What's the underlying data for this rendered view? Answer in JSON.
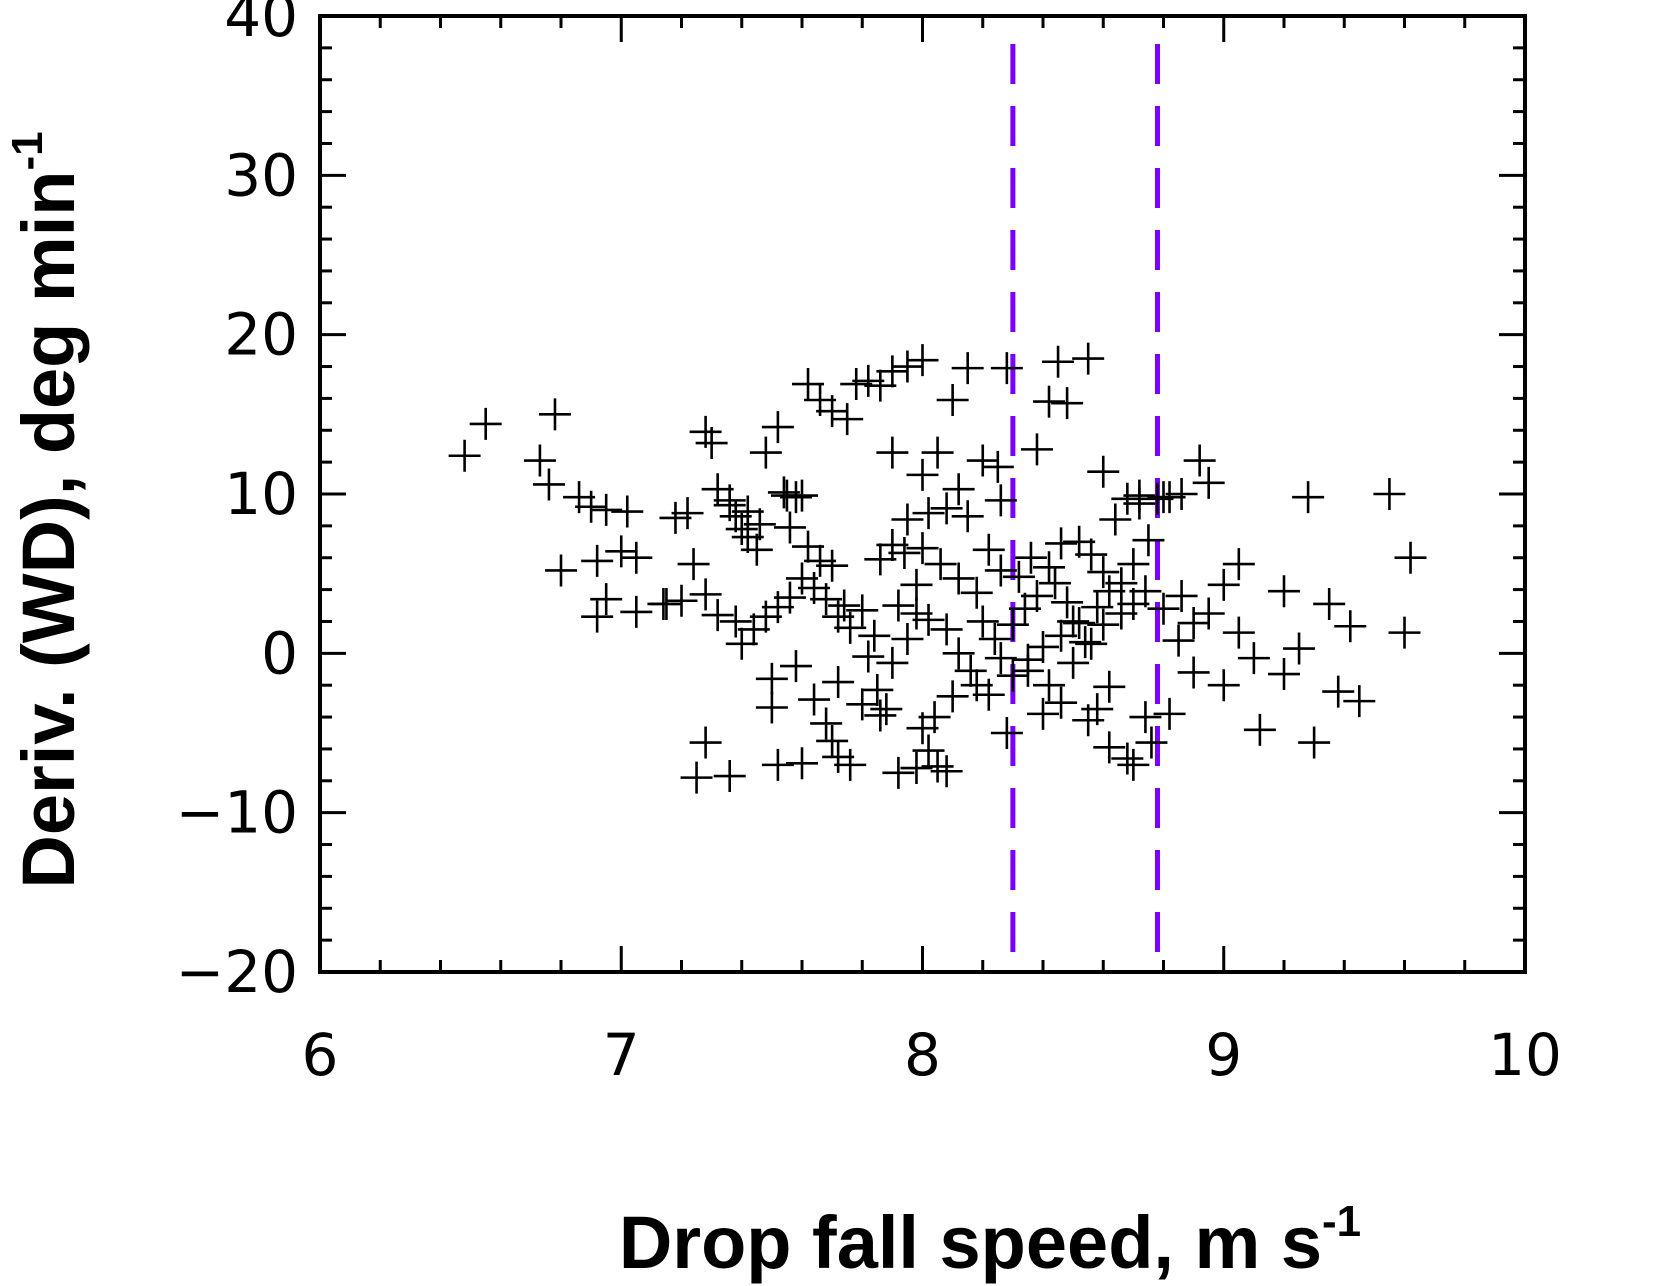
{
  "chart_data": {
    "type": "scatter",
    "xlabel": "Drop fall speed, m s",
    "xlabel_sup": "-1",
    "ylabel": "Deriv. (WD), deg min",
    "ylabel_sup": "-1",
    "xlim": [
      6,
      10
    ],
    "ylim": [
      -20,
      40
    ],
    "xticks": [
      "6",
      "7",
      "8",
      "9",
      "10"
    ],
    "yticks": [
      "−20",
      "−10",
      "0",
      "10",
      "20",
      "30",
      "40"
    ],
    "marker": "+",
    "marker_color": "#000000",
    "grid": false,
    "vlines": [
      {
        "x": 8.3,
        "color": "#7b00ff",
        "style": "dashed"
      },
      {
        "x": 8.78,
        "color": "#7b00ff",
        "style": "dashed"
      }
    ],
    "points": [
      [
        6.48,
        12.4
      ],
      [
        6.55,
        14.4
      ],
      [
        6.78,
        15.0
      ],
      [
        6.73,
        12.1
      ],
      [
        6.76,
        10.6
      ],
      [
        6.86,
        9.8
      ],
      [
        6.9,
        9.2
      ],
      [
        6.95,
        9.0
      ],
      [
        7.02,
        8.9
      ],
      [
        6.8,
        5.2
      ],
      [
        6.92,
        5.8
      ],
      [
        7.0,
        6.4
      ],
      [
        7.05,
        6.0
      ],
      [
        6.95,
        3.4
      ],
      [
        6.92,
        2.3
      ],
      [
        7.05,
        2.6
      ],
      [
        7.15,
        3.1
      ],
      [
        7.18,
        8.5
      ],
      [
        7.22,
        8.8
      ],
      [
        7.28,
        13.9
      ],
      [
        7.3,
        13.2
      ],
      [
        7.32,
        10.3
      ],
      [
        7.36,
        9.3
      ],
      [
        7.38,
        8.6
      ],
      [
        7.4,
        7.8
      ],
      [
        7.42,
        7.3
      ],
      [
        7.45,
        6.5
      ],
      [
        7.48,
        12.6
      ],
      [
        7.52,
        14.2
      ],
      [
        7.55,
        9.9
      ],
      [
        7.58,
        9.8
      ],
      [
        7.62,
        16.9
      ],
      [
        7.66,
        15.9
      ],
      [
        7.7,
        15.2
      ],
      [
        7.75,
        14.7
      ],
      [
        7.78,
        16.9
      ],
      [
        7.82,
        17.1
      ],
      [
        7.86,
        16.8
      ],
      [
        7.9,
        17.7
      ],
      [
        7.95,
        18.0
      ],
      [
        8.0,
        18.4
      ],
      [
        8.15,
        17.9
      ],
      [
        8.28,
        17.9
      ],
      [
        8.42,
        15.8
      ],
      [
        8.48,
        15.7
      ],
      [
        8.45,
        18.3
      ],
      [
        8.55,
        18.5
      ],
      [
        8.1,
        15.9
      ],
      [
        8.05,
        12.6
      ],
      [
        7.9,
        12.6
      ],
      [
        8.2,
        12.1
      ],
      [
        8.25,
        11.7
      ],
      [
        8.38,
        12.8
      ],
      [
        8.6,
        11.4
      ],
      [
        8.92,
        12.1
      ],
      [
        8.95,
        10.7
      ],
      [
        9.28,
        9.8
      ],
      [
        9.55,
        10.0
      ],
      [
        9.62,
        6.0
      ],
      [
        9.6,
        1.3
      ],
      [
        9.42,
        1.7
      ],
      [
        9.35,
        3.1
      ],
      [
        9.2,
        3.9
      ],
      [
        9.25,
        0.3
      ],
      [
        9.2,
        -1.3
      ],
      [
        9.45,
        -3.0
      ],
      [
        9.38,
        -2.4
      ],
      [
        9.12,
        -4.8
      ],
      [
        9.3,
        -5.6
      ],
      [
        9.0,
        -2.0
      ],
      [
        8.9,
        -1.2
      ],
      [
        8.85,
        0.8
      ],
      [
        8.95,
        2.5
      ],
      [
        9.0,
        4.3
      ],
      [
        9.05,
        5.6
      ],
      [
        8.82,
        9.8
      ],
      [
        8.78,
        9.7
      ],
      [
        8.72,
        9.4
      ],
      [
        8.75,
        7.1
      ],
      [
        8.7,
        5.6
      ],
      [
        8.66,
        4.4
      ],
      [
        8.62,
        3.9
      ],
      [
        8.58,
        2.9
      ],
      [
        8.5,
        2.0
      ],
      [
        8.46,
        1.1
      ],
      [
        8.4,
        0.4
      ],
      [
        8.35,
        -0.4
      ],
      [
        8.3,
        -1.4
      ],
      [
        8.28,
        -5.0
      ],
      [
        8.22,
        -2.6
      ],
      [
        8.18,
        -2.0
      ],
      [
        8.12,
        0.0
      ],
      [
        8.08,
        1.5
      ],
      [
        8.02,
        2.1
      ],
      [
        7.98,
        2.5
      ],
      [
        7.95,
        0.9
      ],
      [
        7.9,
        -0.6
      ],
      [
        7.85,
        -2.3
      ],
      [
        7.88,
        -3.5
      ],
      [
        7.92,
        -7.5
      ],
      [
        7.98,
        -7.2
      ],
      [
        8.02,
        -6.1
      ],
      [
        8.05,
        -7.1
      ],
      [
        8.08,
        -7.4
      ],
      [
        8.0,
        -4.7
      ],
      [
        7.82,
        -0.2
      ],
      [
        7.76,
        1.6
      ],
      [
        7.72,
        2.3
      ],
      [
        7.68,
        3.4
      ],
      [
        7.64,
        4.1
      ],
      [
        7.6,
        4.7
      ],
      [
        7.56,
        3.5
      ],
      [
        7.52,
        2.9
      ],
      [
        7.48,
        2.3
      ],
      [
        7.44,
        1.5
      ],
      [
        7.4,
        0.6
      ],
      [
        7.38,
        2.0
      ],
      [
        7.32,
        2.4
      ],
      [
        7.28,
        3.7
      ],
      [
        7.24,
        5.6
      ],
      [
        7.2,
        3.3
      ],
      [
        7.14,
        3.1
      ],
      [
        7.5,
        -1.6
      ],
      [
        7.5,
        -3.4
      ],
      [
        7.58,
        -0.8
      ],
      [
        7.64,
        -2.9
      ],
      [
        7.68,
        -4.4
      ],
      [
        7.7,
        -5.5
      ],
      [
        7.72,
        -6.5
      ],
      [
        7.76,
        -7.0
      ],
      [
        7.6,
        -6.9
      ],
      [
        7.52,
        -7.0
      ],
      [
        7.36,
        -7.7
      ],
      [
        7.25,
        -7.8
      ],
      [
        7.28,
        -5.6
      ],
      [
        7.72,
        -1.8
      ],
      [
        7.84,
        1.1
      ],
      [
        7.86,
        5.9
      ],
      [
        7.9,
        6.8
      ],
      [
        7.95,
        8.4
      ],
      [
        8.02,
        8.8
      ],
      [
        8.08,
        9.1
      ],
      [
        8.15,
        8.6
      ],
      [
        8.22,
        6.5
      ],
      [
        8.26,
        5.2
      ],
      [
        8.32,
        4.8
      ],
      [
        8.36,
        6.0
      ],
      [
        8.42,
        5.4
      ],
      [
        8.46,
        6.9
      ],
      [
        8.52,
        7.0
      ],
      [
        8.56,
        6.2
      ],
      [
        8.6,
        5.1
      ],
      [
        8.64,
        8.4
      ],
      [
        8.68,
        9.7
      ],
      [
        8.72,
        9.9
      ],
      [
        8.8,
        9.8
      ],
      [
        8.86,
        10.0
      ],
      [
        8.62,
        -2.1
      ],
      [
        8.58,
        -3.5
      ],
      [
        8.55,
        -4.2
      ],
      [
        8.62,
        -5.9
      ],
      [
        8.68,
        -6.6
      ],
      [
        8.7,
        -7.0
      ],
      [
        8.74,
        -4.0
      ],
      [
        8.76,
        -5.6
      ],
      [
        8.82,
        -3.8
      ],
      [
        8.46,
        -3.1
      ],
      [
        8.42,
        -2.0
      ],
      [
        8.4,
        -3.8
      ],
      [
        8.35,
        -1.1
      ],
      [
        8.5,
        -0.6
      ],
      [
        8.54,
        0.7
      ],
      [
        8.6,
        1.8
      ],
      [
        8.66,
        2.5
      ],
      [
        8.7,
        3.1
      ],
      [
        8.74,
        3.9
      ],
      [
        8.8,
        2.8
      ],
      [
        8.86,
        3.6
      ],
      [
        8.9,
        1.9
      ],
      [
        9.05,
        1.3
      ],
      [
        9.1,
        -0.3
      ],
      [
        8.18,
        3.8
      ],
      [
        8.12,
        4.7
      ],
      [
        8.06,
        5.6
      ],
      [
        8.0,
        6.6
      ],
      [
        7.94,
        6.3
      ],
      [
        7.98,
        4.3
      ],
      [
        7.92,
        3.0
      ],
      [
        7.8,
        2.7
      ],
      [
        7.74,
        3.0
      ],
      [
        7.7,
        5.5
      ],
      [
        7.66,
        5.8
      ],
      [
        7.62,
        6.7
      ],
      [
        7.56,
        7.9
      ],
      [
        7.46,
        8.1
      ],
      [
        7.42,
        8.9
      ],
      [
        7.36,
        9.6
      ],
      [
        7.6,
        9.9
      ],
      [
        7.54,
        10.1
      ],
      [
        8.26,
        9.6
      ],
      [
        8.12,
        10.3
      ],
      [
        8.0,
        11.2
      ],
      [
        8.2,
        2.0
      ],
      [
        8.24,
        0.9
      ],
      [
        8.3,
        1.8
      ],
      [
        8.34,
        2.8
      ],
      [
        8.38,
        3.6
      ],
      [
        8.44,
        4.4
      ],
      [
        8.48,
        3.2
      ],
      [
        8.52,
        1.9
      ],
      [
        8.56,
        0.6
      ],
      [
        8.26,
        -0.3
      ],
      [
        8.16,
        -1.1
      ],
      [
        8.1,
        -2.7
      ],
      [
        8.04,
        -4.0
      ],
      [
        7.86,
        -3.9
      ],
      [
        7.8,
        -3.2
      ]
    ]
  }
}
